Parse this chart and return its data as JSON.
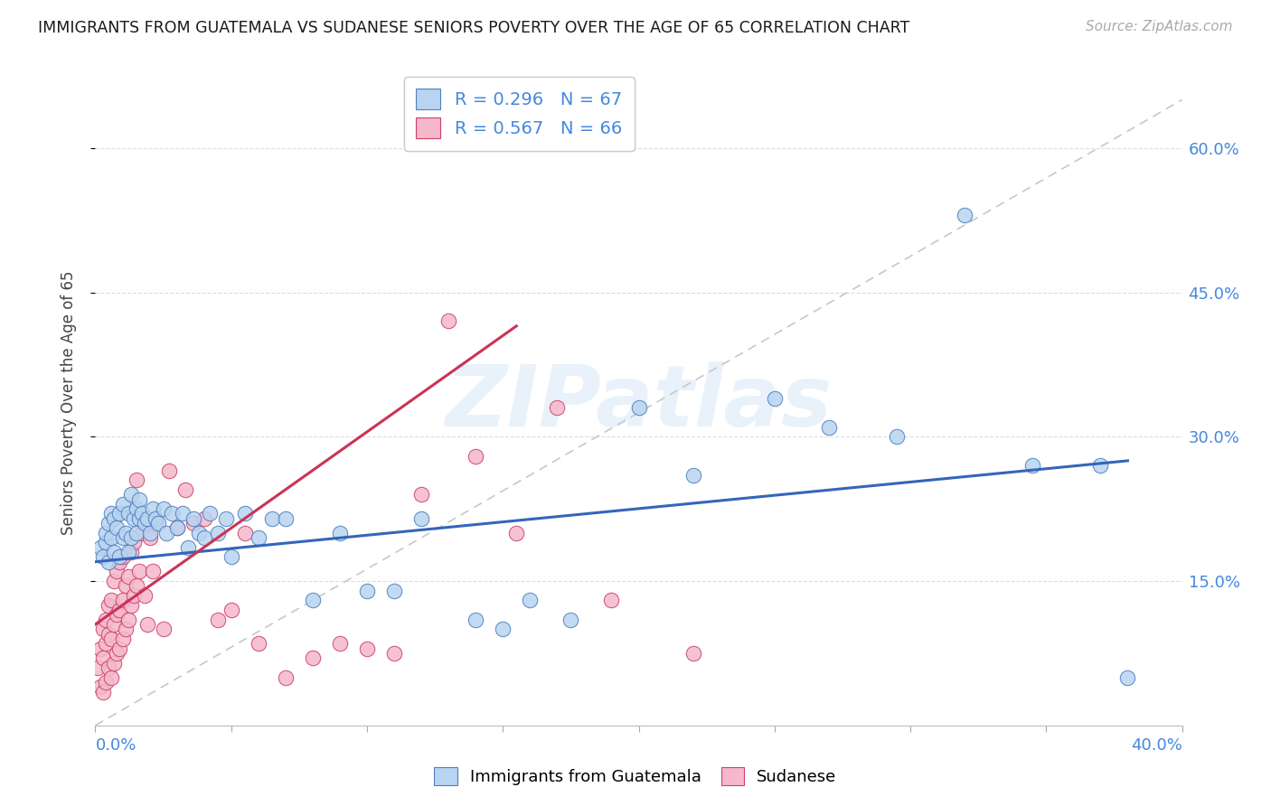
{
  "title": "IMMIGRANTS FROM GUATEMALA VS SUDANESE SENIORS POVERTY OVER THE AGE OF 65 CORRELATION CHART",
  "source": "Source: ZipAtlas.com",
  "ylabel": "Seniors Poverty Over the Age of 65",
  "ytick_labels": [
    "15.0%",
    "30.0%",
    "45.0%",
    "60.0%"
  ],
  "ytick_values": [
    0.15,
    0.3,
    0.45,
    0.6
  ],
  "xlim": [
    0.0,
    0.4
  ],
  "ylim": [
    0.0,
    0.67
  ],
  "blue_R": 0.296,
  "blue_N": 67,
  "pink_R": 0.567,
  "pink_N": 66,
  "blue_face": "#b8d4f0",
  "pink_face": "#f5b8cc",
  "blue_edge": "#5080c0",
  "pink_edge": "#cc4466",
  "blue_line": "#3366bb",
  "pink_line": "#cc3355",
  "ref_color": "#c8c8c8",
  "axis_color": "#4488dd",
  "legend_label_blue": "Immigrants from Guatemala",
  "legend_label_pink": "Sudanese",
  "watermark": "ZIPatlas",
  "blue_scatter_x": [
    0.002,
    0.003,
    0.004,
    0.004,
    0.005,
    0.005,
    0.006,
    0.006,
    0.007,
    0.007,
    0.008,
    0.009,
    0.009,
    0.01,
    0.01,
    0.011,
    0.012,
    0.012,
    0.013,
    0.013,
    0.014,
    0.015,
    0.015,
    0.016,
    0.016,
    0.017,
    0.018,
    0.019,
    0.02,
    0.021,
    0.022,
    0.023,
    0.025,
    0.026,
    0.028,
    0.03,
    0.032,
    0.034,
    0.036,
    0.038,
    0.04,
    0.042,
    0.045,
    0.048,
    0.05,
    0.055,
    0.06,
    0.065,
    0.07,
    0.08,
    0.09,
    0.1,
    0.11,
    0.12,
    0.14,
    0.15,
    0.16,
    0.175,
    0.2,
    0.22,
    0.25,
    0.27,
    0.295,
    0.32,
    0.345,
    0.37,
    0.38
  ],
  "blue_scatter_y": [
    0.185,
    0.175,
    0.19,
    0.2,
    0.17,
    0.21,
    0.195,
    0.22,
    0.18,
    0.215,
    0.205,
    0.175,
    0.22,
    0.195,
    0.23,
    0.2,
    0.22,
    0.18,
    0.24,
    0.195,
    0.215,
    0.225,
    0.2,
    0.235,
    0.215,
    0.22,
    0.21,
    0.215,
    0.2,
    0.225,
    0.215,
    0.21,
    0.225,
    0.2,
    0.22,
    0.205,
    0.22,
    0.185,
    0.215,
    0.2,
    0.195,
    0.22,
    0.2,
    0.215,
    0.175,
    0.22,
    0.195,
    0.215,
    0.215,
    0.13,
    0.2,
    0.14,
    0.14,
    0.215,
    0.11,
    0.1,
    0.13,
    0.11,
    0.33,
    0.26,
    0.34,
    0.31,
    0.3,
    0.53,
    0.27,
    0.27,
    0.05
  ],
  "pink_scatter_x": [
    0.001,
    0.002,
    0.002,
    0.003,
    0.003,
    0.003,
    0.004,
    0.004,
    0.004,
    0.005,
    0.005,
    0.005,
    0.006,
    0.006,
    0.006,
    0.007,
    0.007,
    0.007,
    0.008,
    0.008,
    0.008,
    0.009,
    0.009,
    0.009,
    0.01,
    0.01,
    0.01,
    0.011,
    0.011,
    0.012,
    0.012,
    0.013,
    0.013,
    0.014,
    0.014,
    0.015,
    0.015,
    0.016,
    0.017,
    0.018,
    0.019,
    0.02,
    0.021,
    0.022,
    0.025,
    0.027,
    0.03,
    0.033,
    0.036,
    0.04,
    0.045,
    0.05,
    0.055,
    0.06,
    0.07,
    0.08,
    0.09,
    0.1,
    0.11,
    0.12,
    0.13,
    0.14,
    0.155,
    0.17,
    0.19,
    0.22
  ],
  "pink_scatter_y": [
    0.06,
    0.04,
    0.08,
    0.035,
    0.07,
    0.1,
    0.045,
    0.085,
    0.11,
    0.06,
    0.095,
    0.125,
    0.05,
    0.09,
    0.13,
    0.065,
    0.105,
    0.15,
    0.075,
    0.115,
    0.16,
    0.08,
    0.12,
    0.17,
    0.09,
    0.13,
    0.175,
    0.1,
    0.145,
    0.11,
    0.155,
    0.125,
    0.18,
    0.135,
    0.19,
    0.145,
    0.255,
    0.16,
    0.2,
    0.135,
    0.105,
    0.195,
    0.16,
    0.21,
    0.1,
    0.265,
    0.205,
    0.245,
    0.21,
    0.215,
    0.11,
    0.12,
    0.2,
    0.085,
    0.05,
    0.07,
    0.085,
    0.08,
    0.075,
    0.24,
    0.42,
    0.28,
    0.2,
    0.33,
    0.13,
    0.075
  ],
  "blue_line_x": [
    0.0,
    0.38
  ],
  "blue_line_y": [
    0.17,
    0.275
  ],
  "pink_line_x": [
    0.0,
    0.155
  ],
  "pink_line_y": [
    0.105,
    0.415
  ],
  "ref_line_x": [
    0.0,
    0.4
  ],
  "ref_line_y": [
    0.0,
    0.65
  ]
}
